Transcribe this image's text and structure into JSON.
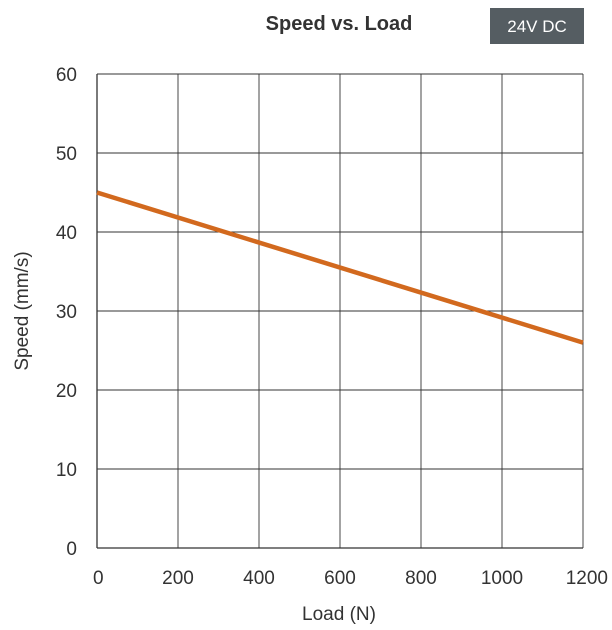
{
  "chart_data": {
    "type": "line",
    "title": "Speed vs. Load",
    "badge": "24V DC",
    "xlabel": "Load (N)",
    "ylabel": "Speed (mm/s)",
    "xlim": [
      0,
      1200
    ],
    "ylim": [
      0,
      60
    ],
    "xticks": [
      0,
      200,
      400,
      600,
      800,
      1000,
      1200
    ],
    "yticks": [
      0,
      10,
      20,
      30,
      40,
      50,
      60
    ],
    "grid": true,
    "series": [
      {
        "color": "#d2691e",
        "x": [
          0,
          1200
        ],
        "y": [
          45,
          26
        ]
      }
    ],
    "colors": {
      "line": "#d2691e",
      "grid": "#333333",
      "badge_bg": "#555d62",
      "text": "#333333"
    }
  }
}
